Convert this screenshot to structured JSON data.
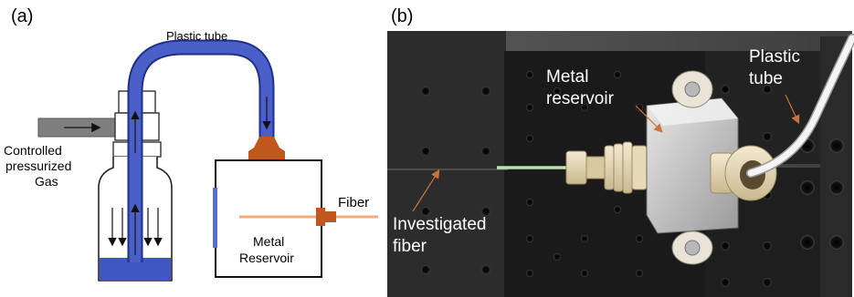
{
  "panel_a": {
    "tag": "(a)",
    "plastic_tube": "Plastic tube",
    "gas_lines": [
      "Controlled",
      "pressurized",
      "Gas"
    ],
    "reservoir_lines": [
      "Metal",
      "Reservoir"
    ],
    "fiber": "Fiber"
  },
  "panel_b": {
    "tag": "(b)",
    "metal_reservoir_lines": [
      "Metal",
      "reservoir"
    ],
    "plastic_tube_lines": [
      "Plastic",
      "tube"
    ],
    "investigated_fiber_lines": [
      "Investigated",
      "fiber"
    ]
  },
  "colors": {
    "tube_blue": "#4a5fc8",
    "tube_blue_dark": "#1f2f8a",
    "fitting_orange": "#c0581e",
    "fiber_orange": "#f0ab7e",
    "gas_pipe_gray": "#7f7f7f",
    "breadboard_black": "#1e1e1e",
    "annotation_arrow": "#c8743a"
  }
}
